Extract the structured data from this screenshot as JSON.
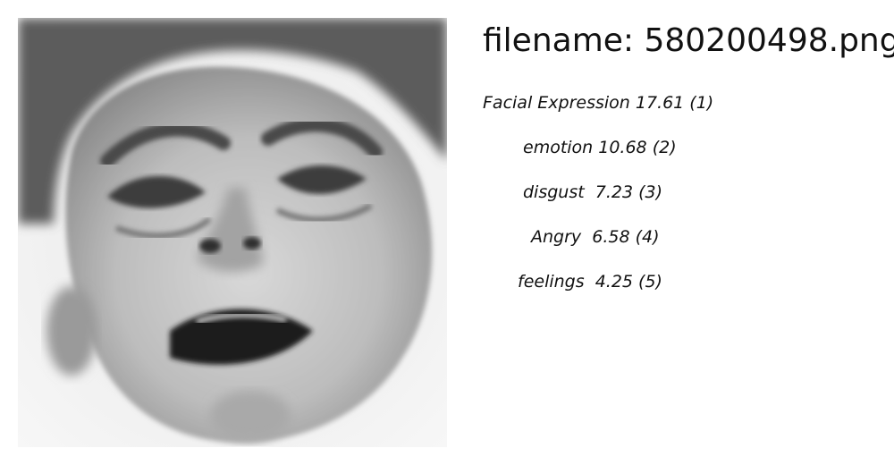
{
  "filename": "filename: 580200498.png",
  "labels": [
    {
      "text": "Facial Expression 17.61 (1)"
    },
    {
      "text": "emotion 10.68 (2)"
    },
    {
      "text": "disgust  7.23 (3)"
    },
    {
      "text": "Angry  6.58 (4)"
    },
    {
      "text": "feelings  4.25 (5)"
    }
  ]
}
